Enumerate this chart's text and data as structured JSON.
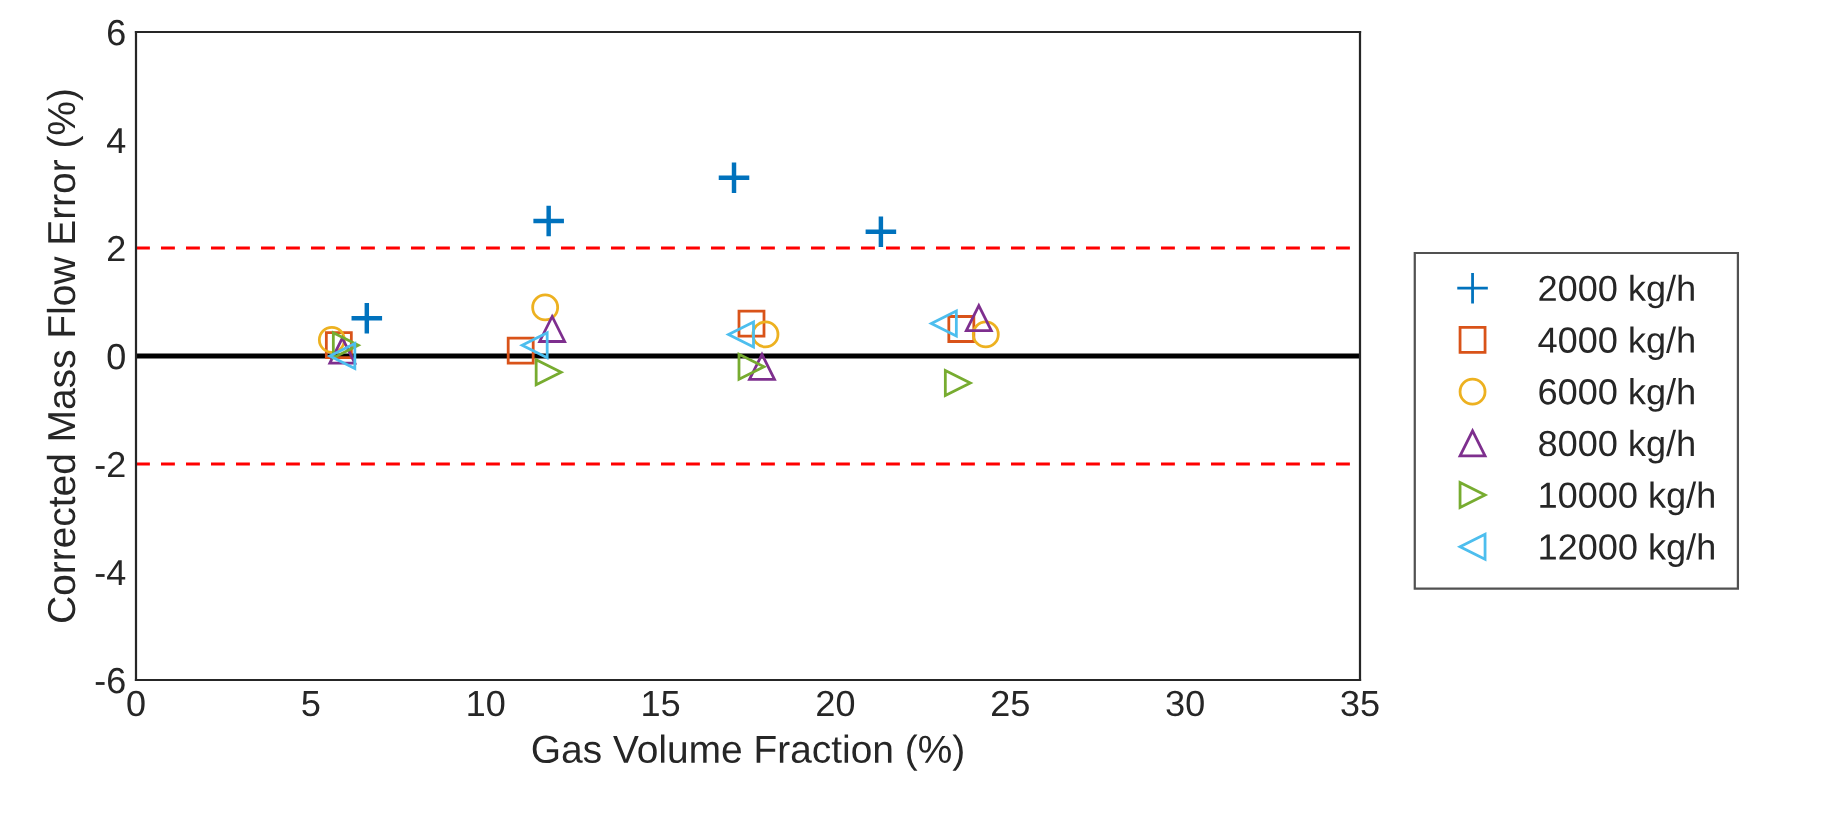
{
  "chart_data": {
    "type": "scatter",
    "xlabel": "Gas Volume Fraction (%)",
    "ylabel": "Corrected Mass Flow Error (%)",
    "xlim": [
      0,
      35
    ],
    "ylim": [
      -6,
      6
    ],
    "xticks": [
      0,
      5,
      10,
      15,
      20,
      25,
      30,
      35
    ],
    "yticks": [
      -6,
      -4,
      -2,
      0,
      2,
      4,
      6
    ],
    "grid": false,
    "legend": "right",
    "series": [
      {
        "name": "2000 kg/h",
        "color": "#0072bd",
        "marker": "plus",
        "x": [
          6.6,
          11.8,
          17.1,
          21.3
        ],
        "values": [
          0.7,
          2.5,
          3.3,
          2.3
        ]
      },
      {
        "name": "4000 kg/h",
        "color": "#d95319",
        "marker": "square",
        "x": [
          5.8,
          11.0,
          17.6,
          23.6
        ],
        "values": [
          0.2,
          0.1,
          0.6,
          0.5
        ]
      },
      {
        "name": "6000 kg/h",
        "color": "#edb120",
        "marker": "circle",
        "x": [
          5.6,
          11.7,
          18.0,
          24.3
        ],
        "values": [
          0.3,
          0.9,
          0.4,
          0.4
        ]
      },
      {
        "name": "8000 kg/h",
        "color": "#7e2f8e",
        "marker": "triangle",
        "x": [
          5.9,
          11.9,
          17.9,
          24.1
        ],
        "values": [
          0.1,
          0.5,
          -0.2,
          0.7
        ]
      },
      {
        "name": "10000 kg/h",
        "color": "#77ac30",
        "marker": "triangle_right",
        "x": [
          6.0,
          11.8,
          17.6,
          23.5
        ],
        "values": [
          0.2,
          -0.3,
          -0.2,
          -0.5
        ]
      },
      {
        "name": "12000 kg/h",
        "color": "#4dbeee",
        "marker": "triangle_left",
        "x": [
          5.9,
          11.4,
          17.3,
          23.1
        ],
        "values": [
          0.0,
          0.2,
          0.4,
          0.6
        ]
      }
    ],
    "ref_lines": [
      {
        "axis": "y",
        "value": 0,
        "color": "#000000",
        "line_style": "solid"
      },
      {
        "axis": "y",
        "value": 2,
        "color": "#ff0000",
        "line_style": "dashed"
      },
      {
        "axis": "y",
        "value": -2,
        "color": "#ff0000",
        "line_style": "dashed"
      }
    ]
  }
}
